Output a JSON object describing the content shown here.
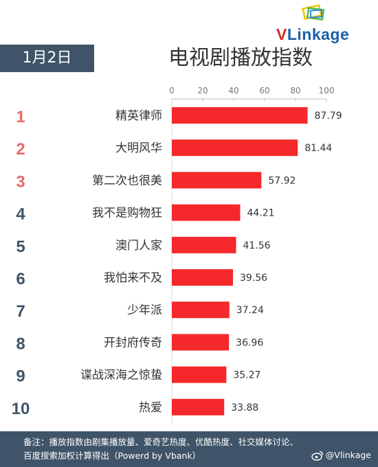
{
  "logo": {
    "v": "V",
    "rest": "Linkage"
  },
  "date_label": "1月2日",
  "title": "电视剧播放指数",
  "colors": {
    "bar": "#f5292b",
    "rank_top": "#e86a6a",
    "rank_rest": "#3f5468",
    "badge_bg": "#3f5468"
  },
  "chart_data": {
    "type": "bar",
    "orientation": "horizontal",
    "title": "电视剧播放指数",
    "xlim": [
      0,
      100
    ],
    "x_ticks": [
      0,
      20,
      40,
      60,
      80,
      100
    ],
    "ranks": [
      "1",
      "2",
      "3",
      "4",
      "5",
      "6",
      "7",
      "8",
      "9",
      "10"
    ],
    "categories": [
      "精英律师",
      "大明风华",
      "第二次也很美",
      "我不是购物狂",
      "澳门人家",
      "我怕来不及",
      "少年派",
      "开封府传奇",
      "谍战深海之惊蛰",
      "热爱"
    ],
    "values": [
      87.79,
      81.44,
      57.92,
      44.21,
      41.56,
      39.56,
      37.24,
      36.96,
      35.27,
      33.88
    ],
    "value_labels": [
      "87.79",
      "81.44",
      "57.92",
      "44.21",
      "41.56",
      "39.56",
      "37.24",
      "36.96",
      "35.27",
      "33.88"
    ]
  },
  "footer": {
    "line1": "备注：播放指数由剧集播放量、爱奇艺热度、优酷热度、社交媒体讨论、",
    "line2": "百度搜索加权计算得出（Powerd by Vbank）"
  },
  "watermark": "@Vlinkage",
  "watermark_icon": "weibo-icon"
}
